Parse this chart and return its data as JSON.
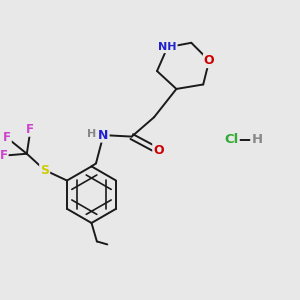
{
  "bg_color": "#e8e8e8",
  "bond_color": "#1a1a1a",
  "bond_width": 1.4,
  "atom_colors": {
    "N": "#2222cc",
    "O": "#cc0000",
    "S": "#cccc00",
    "F": "#cc44cc",
    "C": "#1a1a1a",
    "H": "#888888",
    "Cl": "#33aa33"
  }
}
